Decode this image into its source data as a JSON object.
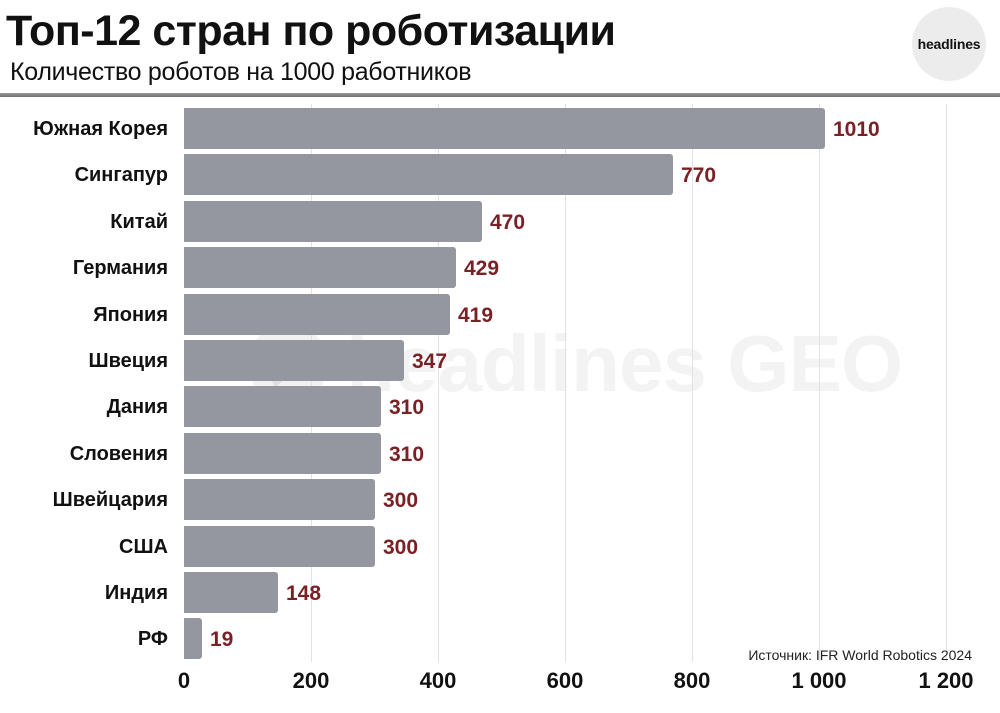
{
  "header": {
    "title": "Топ-12 стран по роботизации",
    "subtitle": "Количество роботов на 1000 работников",
    "logo_text": "headlines"
  },
  "watermark": {
    "text": "headlines GEO",
    "icon": "telegram-paper-plane-icon"
  },
  "footer": {
    "source": "Источник: IFR World Robotics 2024"
  },
  "colors": {
    "bar": "#9497a0",
    "value_label": "#7a2126",
    "gridline": "#e2e2e4",
    "divider": "#7a7a7a",
    "logo_bg": "#ececec"
  },
  "chart_data": {
    "type": "bar",
    "orientation": "horizontal",
    "title": "Топ-12 стран по роботизации",
    "subtitle": "Количество роботов на 1000 работников",
    "xlabel": "",
    "ylabel": "",
    "categories": [
      "Южная Корея",
      "Сингапур",
      "Китай",
      "Германия",
      "Япония",
      "Швеция",
      "Дания",
      "Словения",
      "Швейцария",
      "США",
      "Индия",
      "РФ"
    ],
    "values": [
      1010,
      770,
      470,
      429,
      419,
      347,
      310,
      310,
      300,
      300,
      148,
      19
    ],
    "value_labels": [
      "1010",
      "770",
      "470",
      "429",
      "419",
      "347",
      "310",
      "310",
      "300",
      "300",
      "148",
      "19"
    ],
    "xlim": [
      0,
      1200
    ],
    "x_ticks": [
      0,
      200,
      400,
      600,
      800,
      1000,
      1200
    ],
    "x_tick_labels": [
      "0",
      "200",
      "400",
      "600",
      "800",
      "1 000",
      "1 200"
    ],
    "grid": true,
    "legend": null,
    "source": "Источник: IFR World Robotics 2024"
  }
}
